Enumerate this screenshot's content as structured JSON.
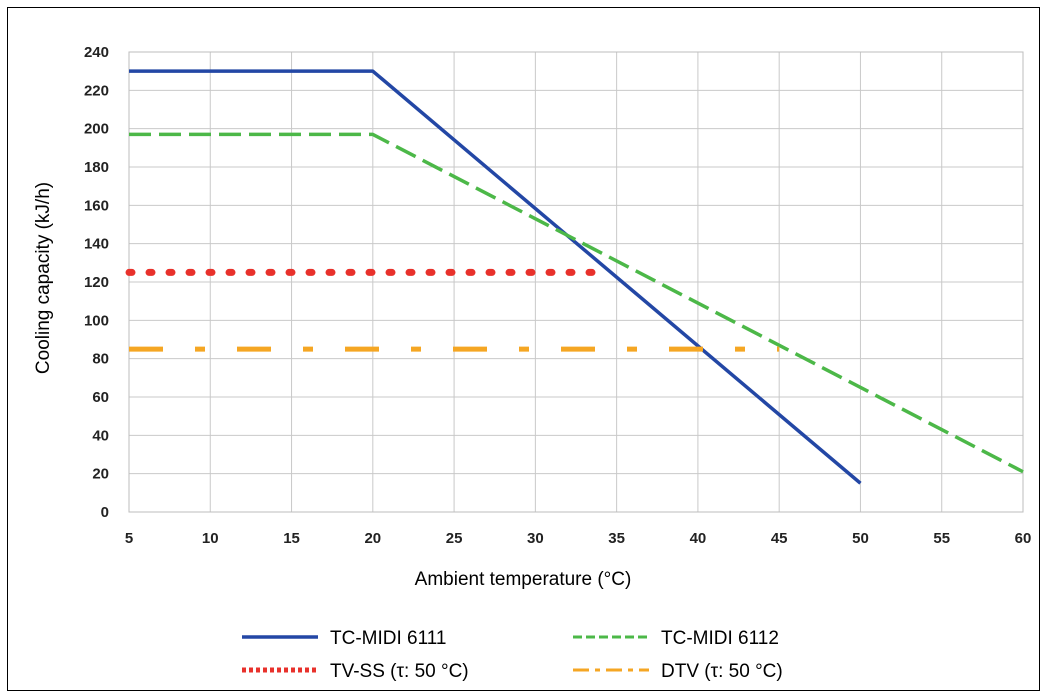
{
  "chart_data": {
    "type": "line",
    "xlabel": "Ambient temperature (°C)",
    "ylabel": "Cooling capacity (kJ/h)",
    "xlim": [
      5,
      60
    ],
    "ylim": [
      0,
      240
    ],
    "xticks": [
      5,
      10,
      15,
      20,
      25,
      30,
      35,
      40,
      45,
      50,
      55,
      60
    ],
    "yticks": [
      0,
      20,
      40,
      60,
      80,
      100,
      120,
      140,
      160,
      180,
      200,
      220,
      240
    ],
    "grid": true,
    "legend_position": "bottom",
    "series": [
      {
        "name": "TC-MIDI 6111",
        "color": "#2347a5",
        "style": "solid",
        "points": [
          [
            5,
            230
          ],
          [
            20,
            230
          ],
          [
            50,
            15
          ]
        ]
      },
      {
        "name": "TC-MIDI 6112",
        "color": "#4cb848",
        "style": "dashed",
        "points": [
          [
            5,
            197
          ],
          [
            20,
            197
          ],
          [
            60,
            21
          ]
        ]
      },
      {
        "name": "TV-SS (τ: 50 °C)",
        "color": "#e8312b",
        "style": "dotted",
        "points": [
          [
            5,
            125
          ],
          [
            34,
            125
          ]
        ]
      },
      {
        "name": "DTV (τ: 50 °C)",
        "color": "#f5a623",
        "style": "dashdot",
        "points": [
          [
            5,
            85
          ],
          [
            45,
            85
          ]
        ]
      }
    ]
  }
}
